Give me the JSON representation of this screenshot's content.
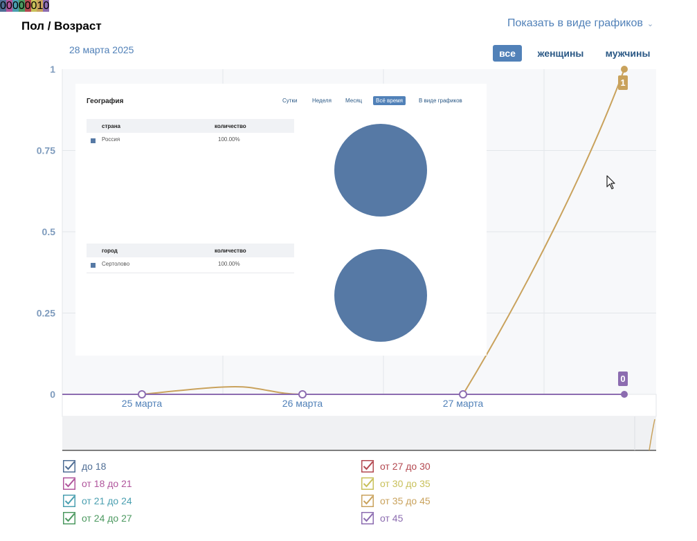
{
  "header": {
    "title": "Пол / Возраст",
    "view_toggle": "Показать в виде графиков"
  },
  "chart_date": "28 марта 2025",
  "gender_tabs": [
    {
      "label": "все",
      "active": true
    },
    {
      "label": "женщины",
      "active": false
    },
    {
      "label": "мужчины",
      "active": false
    }
  ],
  "chart_data": {
    "type": "line",
    "categories": [
      "25 марта",
      "26 марта",
      "27 марта",
      "28 марта"
    ],
    "ylim": [
      0,
      1
    ],
    "yticks": [
      "1",
      "0.75",
      "0.5",
      "0.25",
      "0"
    ],
    "grid": true,
    "series": [
      {
        "name": "до 18",
        "color": "#4f6e95",
        "values": [
          0,
          0,
          0,
          0
        ]
      },
      {
        "name": "от 18 до 21",
        "color": "#b0559c",
        "values": [
          0,
          0,
          0,
          0
        ]
      },
      {
        "name": "от 21 до 24",
        "color": "#4a9fb0",
        "values": [
          0,
          0,
          0,
          0
        ]
      },
      {
        "name": "от 24 до 27",
        "color": "#4c9960",
        "values": [
          0,
          0,
          0,
          0
        ]
      },
      {
        "name": "от 27 до 30",
        "color": "#b34850",
        "values": [
          0,
          0,
          0,
          0
        ]
      },
      {
        "name": "от 30 до 35",
        "color": "#c8c05a",
        "values": [
          0,
          0,
          0,
          0
        ]
      },
      {
        "name": "от 35 до 45",
        "color": "#c9a25c",
        "values": [
          0,
          0,
          0,
          1
        ]
      },
      {
        "name": "от 45",
        "color": "#8c6cb0",
        "values": [
          0,
          0,
          0,
          0
        ]
      }
    ],
    "point_labels": [
      {
        "series": "от 35 до 45",
        "category": "28 марта",
        "text": "1"
      },
      {
        "series": "от 45",
        "category": "28 марта",
        "text": "0"
      }
    ]
  },
  "legend": [
    {
      "label": "до 18",
      "count": "0",
      "color": "#4f6e95"
    },
    {
      "label": "от 18 до 21",
      "count": "0",
      "color": "#b0559c"
    },
    {
      "label": "от 21 до 24",
      "count": "0",
      "color": "#4a9fb0"
    },
    {
      "label": "от 24 до 27",
      "count": "0",
      "color": "#4c9960"
    },
    {
      "label": "от 27 до 30",
      "count": "0",
      "color": "#b34850"
    },
    {
      "label": "от 30 до 35",
      "count": "0",
      "color": "#c8c05a"
    },
    {
      "label": "от 35 до 45",
      "count": "1",
      "color": "#c9a25c"
    },
    {
      "label": "от 45",
      "count": "0",
      "color": "#8c6cb0"
    }
  ],
  "overlay": {
    "title": "География",
    "nav": [
      {
        "label": "Сутки",
        "active": false
      },
      {
        "label": "Неделя",
        "active": false
      },
      {
        "label": "Месяц",
        "active": false
      },
      {
        "label": "Всё время",
        "active": true
      },
      {
        "label": "В виде графиков",
        "active": false
      }
    ],
    "country_table": {
      "headers": [
        "страна",
        "количество"
      ],
      "rows": [
        {
          "name": "Россия",
          "value": "100.00%"
        }
      ]
    },
    "city_table": {
      "headers": [
        "город",
        "количество"
      ],
      "rows": [
        {
          "name": "Сертолово",
          "value": "100.00%"
        }
      ]
    },
    "pie_color": "#5679a5"
  },
  "icons": {
    "view_toggle": "chevron-down-icon",
    "legend_checkbox": "checkbox-checked-icon",
    "cursor": "mouse-pointer-icon"
  }
}
